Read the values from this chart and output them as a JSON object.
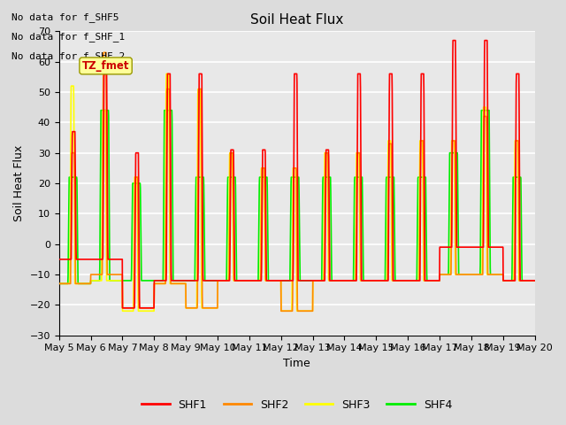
{
  "title": "Soil Heat Flux",
  "xlabel": "Time",
  "ylabel": "Soil Heat Flux",
  "ylim": [
    -30,
    70
  ],
  "yticks": [
    -30,
    -20,
    -10,
    0,
    10,
    20,
    30,
    40,
    50,
    60,
    70
  ],
  "x_labels": [
    "May 5",
    "May 6",
    "May 7",
    "May 8",
    "May 9",
    "May 10",
    "May 11",
    "May 12",
    "May 13",
    "May 14",
    "May 15",
    "May 16",
    "May 17",
    "May 18",
    "May 19",
    "May 20"
  ],
  "no_data_text": [
    "No data for f_SHF5",
    "No data for f_SHF_1",
    "No data for f_SHF_2"
  ],
  "annotation_text": "TZ_fmet",
  "colors": {
    "SHF1": "#FF0000",
    "SHF2": "#FF8800",
    "SHF3": "#FFFF00",
    "SHF4": "#00EE00"
  },
  "background_color": "#DCDCDC",
  "plot_bg_color": "#E8E8E8",
  "grid_color": "#FFFFFF",
  "num_days": 15,
  "points_per_day": 144,
  "figsize": [
    6.4,
    4.8
  ],
  "dpi": 100
}
